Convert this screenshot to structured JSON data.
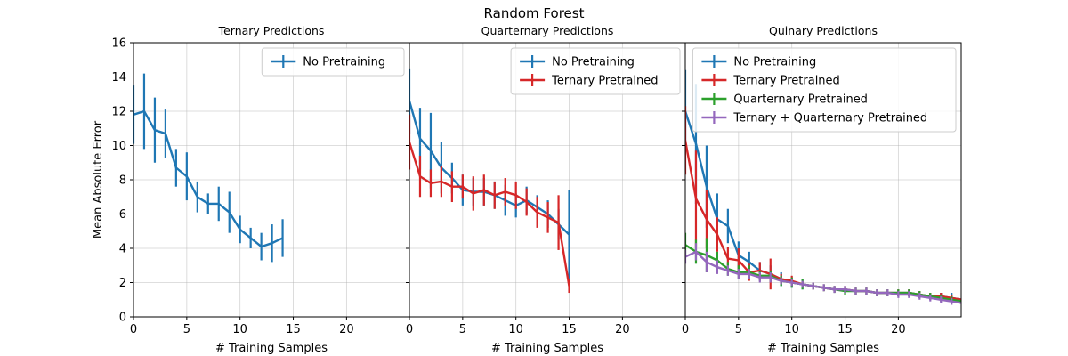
{
  "chart_data": {
    "type": "line",
    "suptitle": "Random Forest",
    "ylabel": "Mean Absolute Error",
    "ylim": [
      0,
      16
    ],
    "yticks": [
      0,
      2,
      4,
      6,
      8,
      10,
      12,
      14,
      16
    ],
    "grid": true,
    "panels": [
      {
        "title": "Ternary Predictions",
        "xlabel": "# Training Samples",
        "xlim": [
          0,
          25.9
        ],
        "xticks": [
          0,
          5,
          10,
          15,
          20
        ],
        "legend_position": "top-right",
        "series": [
          {
            "name": "No Pretraining",
            "color": "#1f77b4",
            "x": [
              0,
              1,
              2,
              3,
              4,
              5,
              6,
              7,
              8,
              9,
              10,
              11,
              12,
              13,
              14
            ],
            "y": [
              11.8,
              12.0,
              10.9,
              10.7,
              8.7,
              8.2,
              7.0,
              6.6,
              6.6,
              6.1,
              5.1,
              4.6,
              4.1,
              4.3,
              4.6
            ],
            "err": [
              1.7,
              2.2,
              1.9,
              1.4,
              1.1,
              1.4,
              0.9,
              0.6,
              1.0,
              1.2,
              0.8,
              0.6,
              0.8,
              1.1,
              1.1
            ]
          }
        ]
      },
      {
        "title": "Quarternary Predictions",
        "xlabel": "# Training Samples",
        "xlim": [
          0,
          25.9
        ],
        "xticks": [
          0,
          5,
          10,
          15,
          20
        ],
        "legend_position": "top-right",
        "series": [
          {
            "name": "No Pretraining",
            "color": "#1f77b4",
            "x": [
              0,
              1,
              2,
              3,
              4,
              5,
              6,
              7,
              8,
              9,
              10,
              11,
              12,
              13,
              14,
              15
            ],
            "y": [
              12.6,
              10.4,
              9.7,
              8.7,
              8.1,
              7.4,
              7.3,
              7.3,
              7.1,
              6.8,
              6.5,
              6.8,
              6.4,
              6.0,
              5.4,
              4.8
            ],
            "err": [
              1.9,
              1.8,
              2.2,
              1.5,
              0.9,
              0.9,
              0.8,
              0.8,
              0.8,
              0.9,
              0.7,
              0.8,
              0.7,
              0.8,
              0.9,
              2.6
            ]
          },
          {
            "name": "Ternary Pretrained",
            "color": "#d62728",
            "x": [
              0,
              1,
              2,
              3,
              4,
              5,
              6,
              7,
              8,
              9,
              10,
              11,
              12,
              13,
              14,
              15
            ],
            "y": [
              10.2,
              8.2,
              7.8,
              7.9,
              7.6,
              7.6,
              7.2,
              7.4,
              7.1,
              7.3,
              7.1,
              6.7,
              6.1,
              5.8,
              5.5,
              1.8
            ],
            "err": [
              1.6,
              1.2,
              0.8,
              0.9,
              0.9,
              0.7,
              1.0,
              0.9,
              0.8,
              0.8,
              0.8,
              0.8,
              0.9,
              0.9,
              1.6,
              0.4
            ]
          }
        ]
      },
      {
        "title": "Quinary Predictions",
        "xlabel": "# Training Samples",
        "xlim": [
          0,
          25.9
        ],
        "xticks": [
          0,
          5,
          10,
          15,
          20
        ],
        "legend_position": "top-right",
        "series": [
          {
            "name": "No Pretraining",
            "color": "#1f77b4",
            "x": [
              0,
              1,
              2,
              3,
              4,
              5,
              6,
              7,
              8,
              9,
              10,
              11,
              12,
              13,
              14,
              15,
              16,
              17,
              18,
              19,
              20,
              21,
              22,
              23,
              24,
              25,
              26
            ],
            "y": [
              12.0,
              10.1,
              7.6,
              5.7,
              5.3,
              3.6,
              3.2,
              2.7,
              2.5,
              2.2,
              2.0,
              1.9,
              1.8,
              1.7,
              1.6,
              1.6,
              1.5,
              1.5,
              1.4,
              1.4,
              1.4,
              1.4,
              1.3,
              1.2,
              1.2,
              1.1,
              1.0
            ],
            "err": [
              2.4,
              3.5,
              2.4,
              1.5,
              1.0,
              0.8,
              0.6,
              0.5,
              0.5,
              0.4,
              0.3,
              0.3,
              0.2,
              0.2,
              0.2,
              0.2,
              0.2,
              0.2,
              0.2,
              0.2,
              0.2,
              0.2,
              0.2,
              0.2,
              0.2,
              0.3,
              0.4
            ]
          },
          {
            "name": "Ternary Pretrained",
            "color": "#d62728",
            "x": [
              0,
              1,
              2,
              3,
              4,
              5,
              6,
              7,
              8,
              9,
              10,
              11,
              12,
              13,
              14,
              15,
              16,
              17,
              18,
              19,
              20,
              21,
              22,
              23,
              24,
              25,
              26
            ],
            "y": [
              10.3,
              6.9,
              5.7,
              4.8,
              3.4,
              3.3,
              2.6,
              2.7,
              2.5,
              2.2,
              2.1,
              1.9,
              1.8,
              1.7,
              1.6,
              1.6,
              1.5,
              1.5,
              1.4,
              1.4,
              1.4,
              1.4,
              1.3,
              1.2,
              1.2,
              1.1,
              1.0
            ],
            "err": [
              2.0,
              2.8,
              1.7,
              1.0,
              0.7,
              0.7,
              0.5,
              0.5,
              0.9,
              0.3,
              0.3,
              0.2,
              0.2,
              0.2,
              0.2,
              0.2,
              0.2,
              0.2,
              0.2,
              0.2,
              0.2,
              0.2,
              0.2,
              0.2,
              0.2,
              0.2,
              0.2
            ]
          },
          {
            "name": "Quarternary Pretrained",
            "color": "#2ca02c",
            "x": [
              0,
              1,
              2,
              3,
              4,
              5,
              6,
              7,
              8,
              9,
              10,
              11,
              12,
              13,
              14,
              15,
              16,
              17,
              18,
              19,
              20,
              21,
              22,
              23,
              24,
              25,
              26
            ],
            "y": [
              4.2,
              3.8,
              3.6,
              3.3,
              2.8,
              2.6,
              2.6,
              2.4,
              2.4,
              2.1,
              2.0,
              1.9,
              1.8,
              1.7,
              1.6,
              1.5,
              1.5,
              1.5,
              1.4,
              1.4,
              1.4,
              1.4,
              1.3,
              1.2,
              1.1,
              1.0,
              0.9
            ],
            "err": [
              0.7,
              0.7,
              1.0,
              0.5,
              0.4,
              0.4,
              0.4,
              0.3,
              0.3,
              0.3,
              0.3,
              0.3,
              0.2,
              0.2,
              0.2,
              0.2,
              0.2,
              0.2,
              0.2,
              0.2,
              0.2,
              0.2,
              0.2,
              0.2,
              0.2,
              0.2,
              0.2
            ]
          },
          {
            "name": "Ternary + Quarternary Pretrained",
            "color": "#9467bd",
            "x": [
              0,
              1,
              2,
              3,
              4,
              5,
              6,
              7,
              8,
              9,
              10,
              11,
              12,
              13,
              14,
              15,
              16,
              17,
              18,
              19,
              20,
              21,
              22,
              23,
              24,
              25,
              26
            ],
            "y": [
              3.5,
              3.8,
              3.2,
              2.9,
              2.7,
              2.5,
              2.5,
              2.3,
              2.3,
              2.1,
              2.0,
              1.9,
              1.8,
              1.7,
              1.6,
              1.6,
              1.5,
              1.5,
              1.4,
              1.4,
              1.3,
              1.3,
              1.2,
              1.1,
              1.0,
              0.9,
              0.8
            ],
            "err": [
              0.4,
              0.5,
              0.6,
              0.4,
              0.3,
              0.3,
              0.3,
              0.3,
              0.3,
              0.2,
              0.2,
              0.2,
              0.2,
              0.2,
              0.2,
              0.2,
              0.2,
              0.2,
              0.2,
              0.2,
              0.2,
              0.2,
              0.2,
              0.2,
              0.2,
              0.2,
              0.2
            ]
          }
        ]
      }
    ]
  }
}
